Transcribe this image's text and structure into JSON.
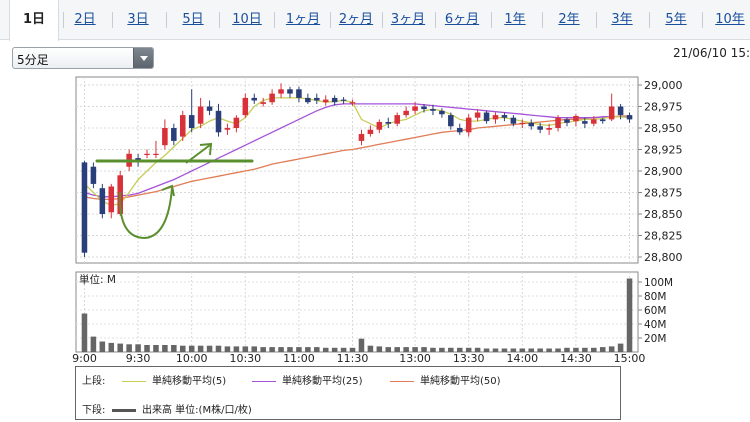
{
  "tabs": [
    "1日",
    "2日",
    "3日",
    "5日",
    "10日",
    "1ヶ月",
    "2ヶ月",
    "3ヶ月",
    "6ヶ月",
    "1年",
    "2年",
    "3年",
    "5年",
    "10年"
  ],
  "interval_select": {
    "value": "5分足"
  },
  "datetime": "21/06/10 15:",
  "price_axis": [
    "29,000",
    "28,975",
    "28,950",
    "28,925",
    "28,900",
    "28,875",
    "28,850",
    "28,825",
    "28,800"
  ],
  "volume_axis": [
    "100M",
    "80M",
    "60M",
    "40M",
    "20M"
  ],
  "volume_unit_label": "単位: M",
  "time_axis": [
    "9:00",
    "9:30",
    "10:00",
    "10:30",
    "11:00",
    "11:30",
    "13:00",
    "13:30",
    "14:00",
    "14:30",
    "15:00"
  ],
  "legend": {
    "upper_label": "上段:",
    "lower_label": "下段:",
    "ma5": "単純移動平均(5)",
    "ma25": "単純移動平均(25)",
    "ma50": "単純移動平均(50)",
    "volume": "出来高 単位:(M株/口/枚)"
  },
  "colors": {
    "up": "#d9313a",
    "down": "#2a3f7a",
    "ma5": "#c8cd57",
    "ma25": "#a553d8",
    "ma50": "#e07c57",
    "annotation": "#5a8f2e",
    "volume": "#666666"
  },
  "chart_data": [
    {
      "type": "candlestick",
      "y_unit": "price",
      "ylim": [
        28800,
        29000
      ],
      "x": [
        "9:00",
        "9:05",
        "9:10",
        "9:15",
        "9:20",
        "9:25",
        "9:30",
        "9:35",
        "9:40",
        "9:45",
        "9:50",
        "9:55",
        "10:00",
        "10:05",
        "10:10",
        "10:15",
        "10:20",
        "10:25",
        "10:30",
        "10:35",
        "10:40",
        "10:45",
        "10:50",
        "10:55",
        "11:00",
        "11:05",
        "11:10",
        "11:15",
        "11:20",
        "11:25",
        "11:30",
        "12:30",
        "12:35",
        "12:40",
        "12:45",
        "12:50",
        "12:55",
        "13:00",
        "13:05",
        "13:10",
        "13:15",
        "13:20",
        "13:25",
        "13:30",
        "13:35",
        "13:40",
        "13:45",
        "13:50",
        "13:55",
        "14:00",
        "14:05",
        "14:10",
        "14:15",
        "14:20",
        "14:25",
        "14:30",
        "14:35",
        "14:40",
        "14:45",
        "14:50",
        "14:55",
        "15:00"
      ],
      "open": [
        28910,
        28905,
        28880,
        28852,
        28850,
        28905,
        28915,
        28920,
        28920,
        28930,
        28950,
        28940,
        28965,
        28955,
        28975,
        28970,
        28948,
        28950,
        28965,
        28985,
        28978,
        28980,
        28990,
        28995,
        28995,
        28985,
        28985,
        28980,
        28985,
        28983,
        28980,
        28935,
        28943,
        28948,
        28957,
        28955,
        28965,
        28970,
        28975,
        28972,
        28970,
        28965,
        28950,
        28945,
        28962,
        28968,
        28960,
        28965,
        28962,
        28955,
        28956,
        28952,
        28948,
        28950,
        28960,
        28958,
        28958,
        28955,
        28960,
        28960,
        28975,
        28965
      ],
      "close": [
        28805,
        28885,
        28850,
        28882,
        28895,
        28920,
        28910,
        28920,
        28920,
        28950,
        28935,
        28965,
        28950,
        28975,
        28970,
        28945,
        28950,
        28962,
        28985,
        28982,
        28980,
        28990,
        28995,
        28990,
        28985,
        28980,
        28982,
        28983,
        28980,
        28982,
        28980,
        28943,
        28948,
        28957,
        28955,
        28965,
        28970,
        28975,
        28972,
        28970,
        28966,
        28952,
        28945,
        28962,
        28968,
        28958,
        28965,
        28962,
        28955,
        28956,
        28952,
        28948,
        28950,
        28962,
        28956,
        28964,
        28955,
        28960,
        28958,
        28975,
        28965,
        28960
      ],
      "high": [
        28912,
        28910,
        28885,
        28885,
        28900,
        28925,
        28920,
        28925,
        28935,
        28960,
        28955,
        28970,
        28995,
        28985,
        28982,
        28978,
        28955,
        28965,
        28990,
        28990,
        28985,
        28995,
        29002,
        28998,
        28998,
        28990,
        28990,
        28988,
        28988,
        28986,
        28983,
        28948,
        28953,
        28960,
        28962,
        28968,
        28975,
        28980,
        28978,
        28977,
        28973,
        28968,
        28955,
        28966,
        28972,
        28970,
        28968,
        28968,
        28965,
        28960,
        28960,
        28956,
        28955,
        28965,
        28962,
        28966,
        28962,
        28964,
        28962,
        28990,
        28978,
        28968
      ],
      "low": [
        28800,
        28880,
        28845,
        28845,
        28848,
        28900,
        28905,
        28915,
        28915,
        28925,
        28930,
        28935,
        28945,
        28950,
        28965,
        28940,
        28942,
        28945,
        28962,
        28978,
        28975,
        28977,
        28985,
        28985,
        28980,
        28978,
        28978,
        28976,
        28976,
        28978,
        28976,
        28930,
        28940,
        28944,
        28950,
        28952,
        28962,
        28966,
        28968,
        28965,
        28962,
        28948,
        28942,
        28940,
        28958,
        28955,
        28955,
        28958,
        28952,
        28950,
        28948,
        28944,
        28942,
        28946,
        28952,
        28952,
        28950,
        28952,
        28955,
        28958,
        28960,
        28956
      ],
      "ma5": [
        28885,
        28875,
        28865,
        28860,
        28862,
        28875,
        28890,
        28900,
        28910,
        28918,
        28928,
        28938,
        28948,
        28952,
        28958,
        28962,
        28958,
        28955,
        28962,
        28975,
        28982,
        28985,
        28985,
        28985,
        28985,
        28984,
        28982,
        28980,
        28981,
        28982,
        28980,
        28960,
        28955,
        28950,
        28955,
        28958,
        28960,
        28965,
        28970,
        28972,
        28970,
        28966,
        28960,
        28958,
        28958,
        28960,
        28962,
        28962,
        28960,
        28958,
        28956,
        28954,
        28953,
        28955,
        28957,
        28958,
        28960,
        28960,
        28961,
        28963,
        28963,
        28962
      ],
      "ma25": [
        28875,
        28872,
        28870,
        28870,
        28871,
        28872,
        28874,
        28878,
        28882,
        28886,
        28890,
        28895,
        28900,
        28905,
        28910,
        28915,
        28920,
        28925,
        28930,
        28935,
        28940,
        28945,
        28950,
        28955,
        28960,
        28965,
        28970,
        28974,
        28977,
        28978,
        28978,
        28978,
        28978,
        28978,
        28978,
        28978,
        28978,
        28978,
        28977,
        28976,
        28975,
        28974,
        28973,
        28972,
        28971,
        28970,
        28969,
        28968,
        28967,
        28966,
        28965,
        28964,
        28963,
        28962,
        28962,
        28962,
        28962,
        28962,
        28963,
        28963,
        28963,
        28963
      ],
      "ma50": [
        28870,
        28868,
        28867,
        28867,
        28868,
        28870,
        28872,
        28874,
        28876,
        28879,
        28882,
        28885,
        28888,
        28890,
        28892,
        28894,
        28896,
        28898,
        28900,
        28902,
        28905,
        28908,
        28910,
        28912,
        28914,
        28916,
        28918,
        28920,
        28922,
        28924,
        28925,
        28927,
        28929,
        28931,
        28933,
        28935,
        28937,
        28939,
        28941,
        28943,
        28945,
        28946,
        28947,
        28948,
        28950,
        28951,
        28952,
        28953,
        28954,
        28955,
        28956,
        28957,
        28958,
        28959,
        28960,
        28960,
        28961,
        28962,
        28963,
        28963,
        28964,
        28964
      ]
    },
    {
      "type": "bar",
      "y_unit": "M",
      "ylim": [
        0,
        100
      ],
      "x": [
        "9:00",
        "9:05",
        "9:10",
        "9:15",
        "9:20",
        "9:25",
        "9:30",
        "9:35",
        "9:40",
        "9:45",
        "9:50",
        "9:55",
        "10:00",
        "10:05",
        "10:10",
        "10:15",
        "10:20",
        "10:25",
        "10:30",
        "10:35",
        "10:40",
        "10:45",
        "10:50",
        "10:55",
        "11:00",
        "11:05",
        "11:10",
        "11:15",
        "11:20",
        "11:25",
        "11:30",
        "12:30",
        "12:35",
        "12:40",
        "12:45",
        "12:50",
        "12:55",
        "13:00",
        "13:05",
        "13:10",
        "13:15",
        "13:20",
        "13:25",
        "13:30",
        "13:35",
        "13:40",
        "13:45",
        "13:50",
        "13:55",
        "14:00",
        "14:05",
        "14:10",
        "14:15",
        "14:20",
        "14:25",
        "14:30",
        "14:35",
        "14:40",
        "14:45",
        "14:50",
        "14:55",
        "15:00"
      ],
      "values": [
        55,
        22,
        15,
        13,
        12,
        11,
        11,
        10,
        10,
        10,
        10,
        9,
        9,
        9,
        9,
        9,
        8,
        8,
        8,
        8,
        7,
        7,
        7,
        7,
        7,
        7,
        7,
        6,
        6,
        6,
        6,
        19,
        9,
        8,
        7,
        7,
        7,
        7,
        7,
        6,
        6,
        6,
        6,
        6,
        6,
        5,
        5,
        5,
        5,
        5,
        5,
        5,
        5,
        5,
        6,
        6,
        6,
        6,
        7,
        8,
        12,
        105
      ]
    }
  ]
}
